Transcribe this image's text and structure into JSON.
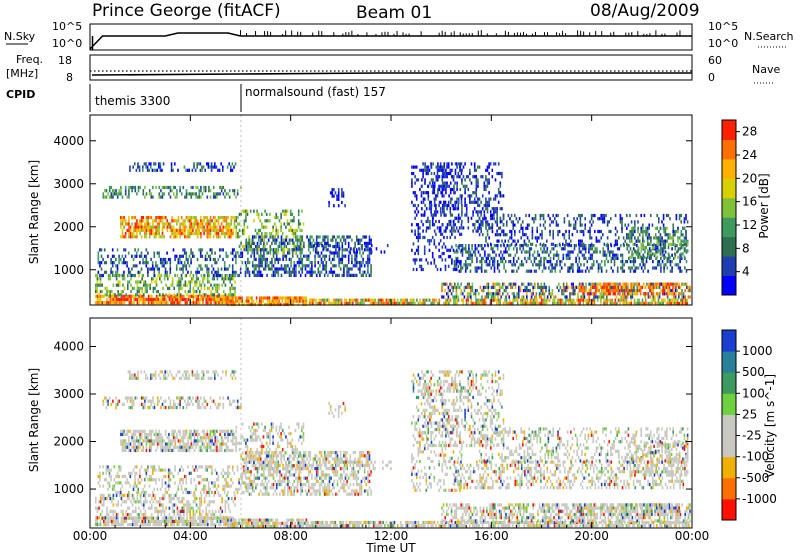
{
  "header": {
    "station": "Prince George (fitACF)",
    "beam": "Beam 01",
    "date": "08/Aug/2009"
  },
  "aux_panels": {
    "nsky": {
      "left_label": "N.Sky",
      "right_label": "N.Search",
      "left_ticks": [
        "10^5",
        "10^0"
      ],
      "right_ticks": [
        "10^5",
        "10^0"
      ]
    },
    "freq": {
      "left_label_1": "Freq.",
      "left_label_2": "[MHz]",
      "right_label": "Nave",
      "left_ticks": [
        "18",
        "8"
      ],
      "right_ticks": [
        "60",
        "0"
      ]
    },
    "cpid": {
      "label": "CPID",
      "modes": [
        {
          "name": "themis 3300",
          "start_hour": 0
        },
        {
          "name": "normalsound (fast) 157",
          "start_hour": 6
        }
      ]
    }
  },
  "chart_data": [
    {
      "type": "heatmap",
      "ylabel": "Slant Range [km]",
      "yticks": [
        1000,
        2000,
        3000,
        4000
      ],
      "ylim": [
        180,
        4600
      ],
      "xlim": [
        0,
        24
      ],
      "colorbar": {
        "label": "Power [dB]",
        "ticks": [
          4,
          8,
          12,
          16,
          20,
          24,
          28
        ],
        "range": [
          0,
          30
        ],
        "colors": [
          "#0000ff",
          "#1f3fb0",
          "#2e6f4f",
          "#3f9a5e",
          "#7fc23a",
          "#d8d000",
          "#ffb000",
          "#ff7000",
          "#ff2000"
        ]
      }
    },
    {
      "type": "heatmap",
      "ylabel": "Velocity [m s^-1]",
      "yaxis_label": "Slant Range [km]",
      "yticks": [
        1000,
        2000,
        3000,
        4000
      ],
      "ylim": [
        180,
        4600
      ],
      "xlim": [
        0,
        24
      ],
      "xticks": [
        "00:00",
        "04:00",
        "08:00",
        "12:00",
        "16:00",
        "20:00",
        "00:00"
      ],
      "xlabel": "Time UT",
      "colorbar": {
        "label": "Velocity [m s^-1]",
        "ticks": [
          "1000",
          "500",
          "100",
          "25",
          "-25",
          "-100",
          "-500",
          "-1000"
        ],
        "colors": [
          "#1a3fd0",
          "#2a7f9a",
          "#3f9a5e",
          "#6fd040",
          "#c8c8c0",
          "#c8c8c0",
          "#f0b000",
          "#ff7000",
          "#ff1000"
        ]
      }
    }
  ]
}
